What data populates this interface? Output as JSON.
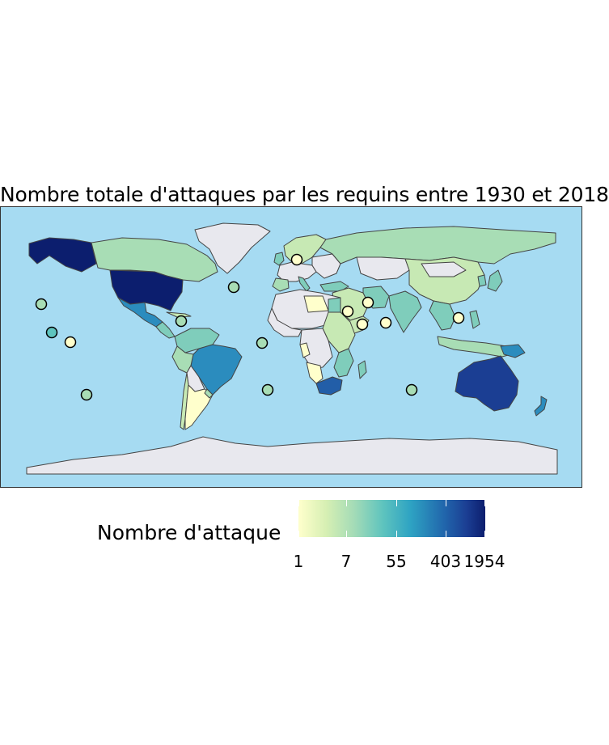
{
  "title": "Nombre totale d'attaques par les requins entre 1930 et 2018",
  "legend": {
    "title": "Nombre d'attaque",
    "labels": [
      "1",
      "7",
      "55",
      "403",
      "1954"
    ],
    "color_low": "#ffffcc",
    "color_high": "#0c1e6e"
  },
  "colors": {
    "ocean": "#a6dbf2",
    "no_data_land": "#e8e8ee",
    "border": "#444444"
  },
  "islands": [
    {
      "name": "pacific-island-1",
      "attacks": 14
    },
    {
      "name": "pacific-island-2",
      "attacks": 30
    },
    {
      "name": "pacific-island-3",
      "attacks": 2
    },
    {
      "name": "pacific-island-4",
      "attacks": 10
    },
    {
      "name": "caribbean-island",
      "attacks": 12
    },
    {
      "name": "atlantic-island-north",
      "attacks": 9
    },
    {
      "name": "atlantic-island-south",
      "attacks": 10
    },
    {
      "name": "south-atlantic-island",
      "attacks": 12
    },
    {
      "name": "europe-island",
      "attacks": 2
    },
    {
      "name": "gulf-island-1",
      "attacks": 1
    },
    {
      "name": "gulf-island-2",
      "attacks": 2
    },
    {
      "name": "aden-island",
      "attacks": 1
    },
    {
      "name": "indian-ocean-island",
      "attacks": 1
    },
    {
      "name": "south-china-sea-island",
      "attacks": 2
    },
    {
      "name": "south-indian-ocean-island",
      "attacks": 12
    }
  ]
}
